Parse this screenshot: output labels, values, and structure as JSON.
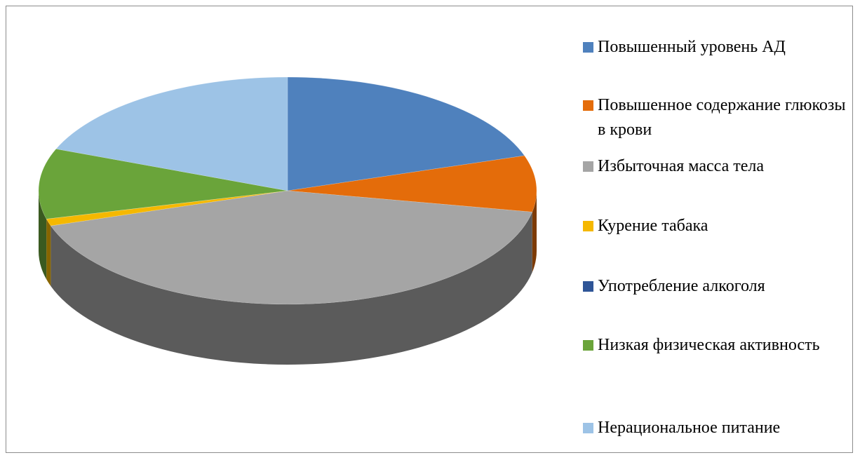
{
  "chart_data": {
    "type": "pie",
    "categories": [
      "Повышенный уровень АД",
      "Повышенное содержание глюкозы в крови",
      "Избыточная масса тела",
      "Курение табака",
      "Употребление алкоголя",
      "Низкая физическая активность",
      "Нерациональное питание"
    ],
    "values": [
      20,
      8,
      42,
      1,
      0,
      10,
      19
    ],
    "colors": [
      "#4f81bd",
      "#e46c0a",
      "#a5a5a5",
      "#f5b800",
      "#2f5597",
      "#6aa43a",
      "#9dc3e6"
    ],
    "legend": "right"
  }
}
